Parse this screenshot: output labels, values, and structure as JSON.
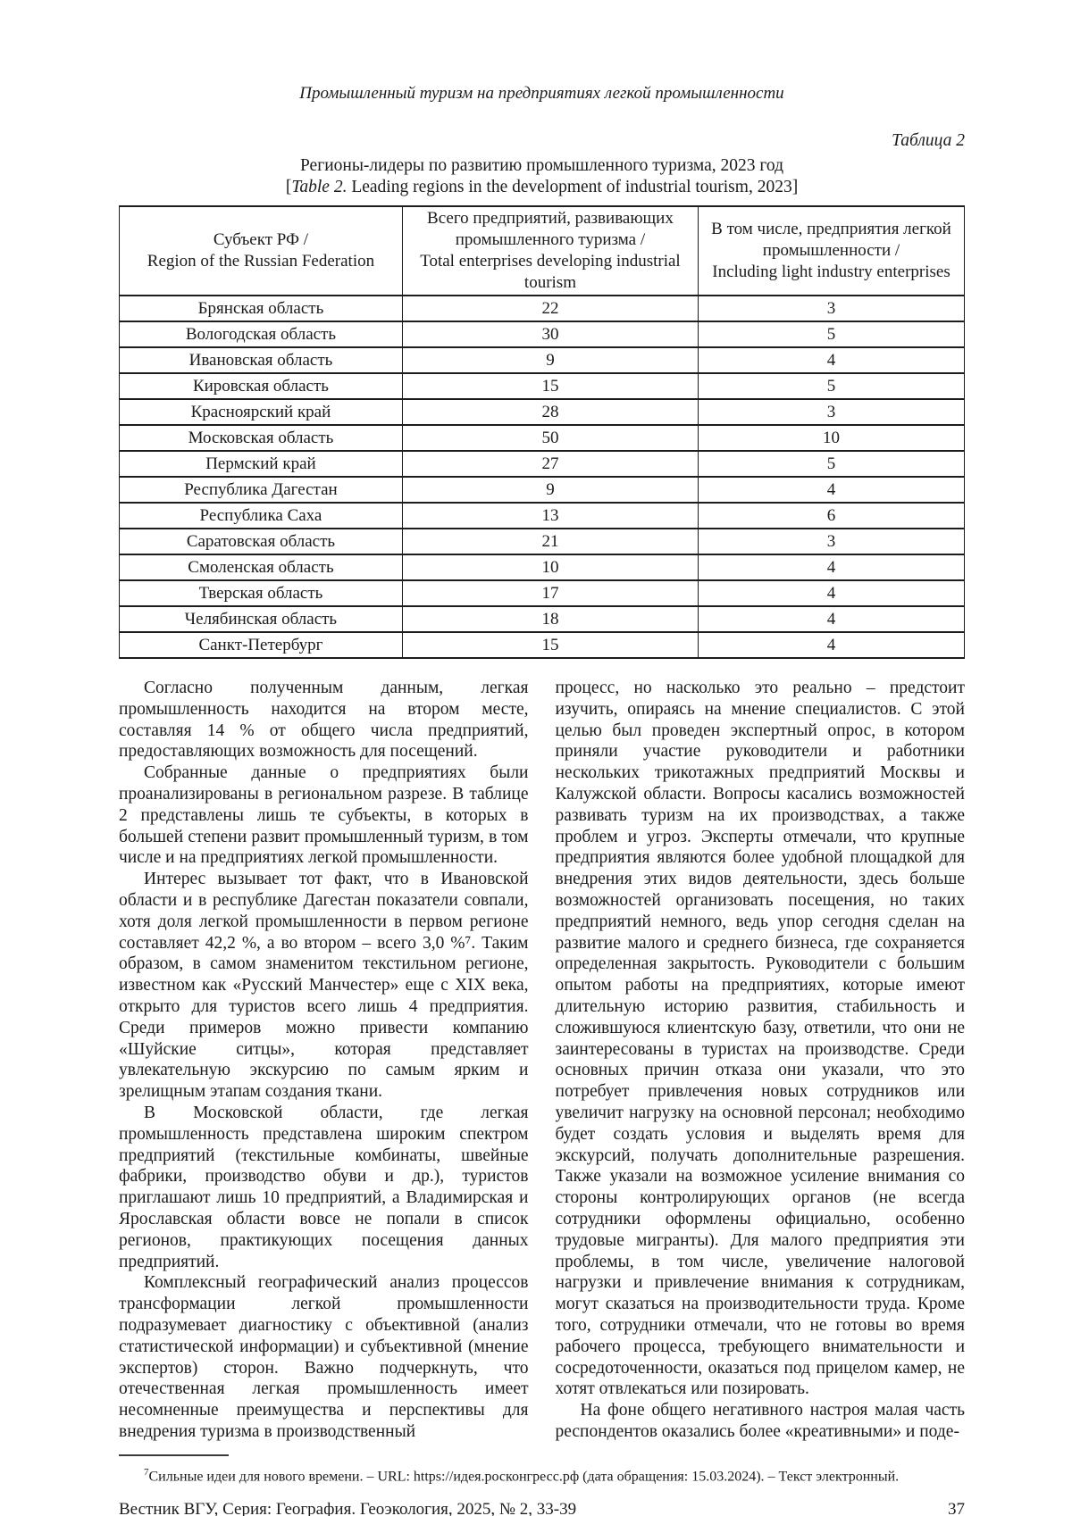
{
  "header": {
    "running_title": "Промышленный туризм на предприятиях легкой промышленности"
  },
  "table": {
    "label": "Таблица 2",
    "caption_ru": "Регионы-лидеры по развитию промышленного туризма, 2023 год",
    "caption_en_open": "[",
    "caption_en_italic": "Table 2.",
    "caption_en_rest": " Leading regions in the development of industrial tourism, 2023]",
    "columns": [
      {
        "ru": "Субъект РФ /",
        "en": "Region of the Russian Federation"
      },
      {
        "ru": "Всего предприятий, развивающих промышленного туризма /",
        "en": "Total enterprises developing industrial tourism"
      },
      {
        "ru": "В том числе, предприятия легкой промышленности /",
        "en": "Including light industry enterprises"
      }
    ],
    "rows": [
      {
        "region": "Брянская область",
        "total": "22",
        "light": "3"
      },
      {
        "region": "Вологодская область",
        "total": "30",
        "light": "5"
      },
      {
        "region": "Ивановская область",
        "total": "9",
        "light": "4"
      },
      {
        "region": "Кировская область",
        "total": "15",
        "light": "5"
      },
      {
        "region": "Красноярский край",
        "total": "28",
        "light": "3"
      },
      {
        "region": "Московская область",
        "total": "50",
        "light": "10"
      },
      {
        "region": "Пермский край",
        "total": "27",
        "light": "5"
      },
      {
        "region": "Республика Дагестан",
        "total": "9",
        "light": "4"
      },
      {
        "region": "Республика Саха",
        "total": "13",
        "light": "6"
      },
      {
        "region": "Саратовская область",
        "total": "21",
        "light": "3"
      },
      {
        "region": "Смоленская область",
        "total": "10",
        "light": "4"
      },
      {
        "region": "Тверская область",
        "total": "17",
        "light": "4"
      },
      {
        "region": "Челябинская область",
        "total": "18",
        "light": "4"
      },
      {
        "region": "Санкт-Петербург",
        "total": "15",
        "light": "4"
      }
    ]
  },
  "body": {
    "left_paragraphs": [
      "Согласно полученным данным, легкая промышленность находится на втором месте, составляя 14 % от общего числа предприятий, предоставляющих возможность для посещений.",
      "Собранные данные о предприятиях были проанализированы в региональном разрезе. В таблице 2 представлены лишь те субъекты, в которых в большей степени развит промышленный туризм, в том числе и на предприятиях легкой промышленности.",
      "Интерес вызывает тот факт, что в Ивановской области и в республике Дагестан показатели совпали, хотя доля легкой промышленности в первом регионе составляет 42,2 %, а во втором – всего 3,0 %⁷. Таким образом, в самом знаменитом текстильном регионе, известном как «Русский Манчестер» еще с XIX века, открыто для туристов всего лишь 4 предприятия. Среди примеров можно привести компанию «Шуйские ситцы», которая представляет увлекательную экскурсию по самым ярким и зрелищным этапам создания ткани.",
      "В Московской области, где легкая промышленность представлена широким спектром предприятий (текстильные комбинаты, швейные фабрики, производство обуви и др.), туристов приглашают лишь 10 предприятий, а Владимирская и Ярославская области вовсе не попали в список регионов, практикующих посещения данных предприятий.",
      "Комплексный географический анализ процессов трансформации легкой промышленности подразумевает диагностику с объективной (анализ статистической информации) и субъективной (мнение экспертов) сторон. Важно подчеркнуть, что отечественная легкая промышленность имеет несомненные преимущества и перспективы для внедрения туризма в производственный"
    ],
    "right_paragraphs": [
      "процесс, но насколько это реально – предстоит изучить, опираясь на мнение специалистов. С этой целью был проведен экспертный опрос, в котором приняли участие руководители и работники нескольких трикотажных предприятий Москвы и Калужской области. Вопросы касались возможностей развивать туризм на их производствах, а также проблем и угроз. Эксперты отмечали, что крупные предприятия являются более удобной площадкой для внедрения этих видов деятельности, здесь больше возможностей организовать посещения, но таких предприятий немного, ведь упор сегодня сделан на развитие малого и среднего бизнеса, где сохраняется определенная закрытость. Руководители с большим опытом работы на предприятиях, которые имеют длительную историю развития, стабильность и сложившуюся клиентскую базу, ответили, что они не заинтересованы в туристах на производстве. Среди основных причин отказа они указали, что это потребует привлечения новых сотрудников или увеличит нагрузку на основной персонал; необходимо будет создать условия и выделять время для экскурсий, получать дополнительные разрешения. Также указали на возможное усиление внимания со стороны контролирующих органов (не всегда сотрудники оформлены официально, особенно трудовые мигранты). Для малого предприятия эти проблемы, в том числе, увеличение налоговой нагрузки и привлечение внимания к сотрудникам, могут сказаться на производительности труда. Кроме того, сотрудники отмечали, что не готовы во время рабочего процесса, требующего внимательности и сосредоточенности, оказаться под прицелом камер, не хотят отвлекаться или позировать.",
      "На фоне общего негативного настроя малая часть респондентов оказались более «креативными» и поде-"
    ]
  },
  "footnote": {
    "marker": "7",
    "text": "Сильные идеи для нового времени. – URL: https://идея.росконгресс.рф (дата обращения: 15.03.2024). – Текст электронный."
  },
  "footer": {
    "journal_line": "Вестник ВГУ, Серия: География. Геоэкология, 2025, № 2, 33-39",
    "page_number": "37"
  }
}
